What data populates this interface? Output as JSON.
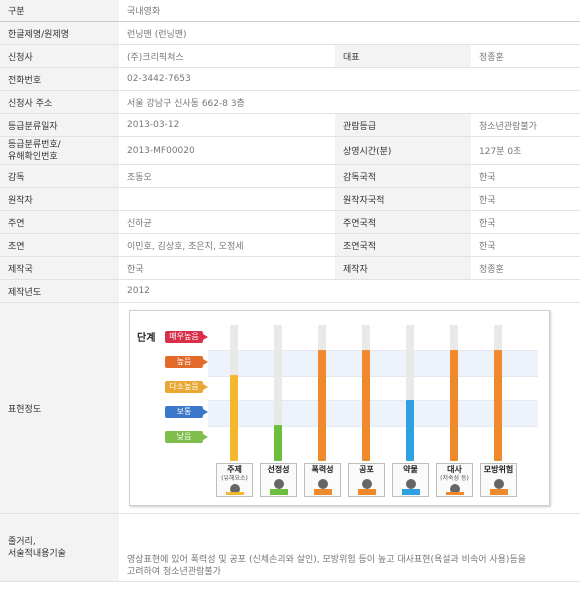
{
  "rows": {
    "category": {
      "label": "구분",
      "value": "국내영화"
    },
    "title": {
      "label": "한글제명/원제명",
      "value": "런닝맨 (런닝맨)"
    },
    "applicant": {
      "label": "신청사",
      "value": "(주)크리픽쳐스",
      "label2": "대표",
      "value2": "정종훈"
    },
    "phone": {
      "label": "전화번호",
      "value": "02-3442-7653"
    },
    "address": {
      "label": "신청사 주소",
      "value": "서울 강남구 신사동 662-8 3층"
    },
    "rating_date": {
      "label": "등급분류일자",
      "value": "2013-03-12",
      "label2": "관람등급",
      "value2": "청소년관람불가"
    },
    "rating_no": {
      "label_line1": "등급분류번호/",
      "label_line2": "유해확인번호",
      "value": "2013-MF00020",
      "label2": "상영시간(분)",
      "value2": "127분 0초"
    },
    "director": {
      "label": "감독",
      "value": "조동오",
      "label2": "감독국적",
      "value2": "한국"
    },
    "author": {
      "label": "원작자",
      "value": "",
      "label2": "원작자국적",
      "value2": "한국"
    },
    "lead": {
      "label": "주연",
      "value": "신하균",
      "label2": "주연국적",
      "value2": "한국"
    },
    "supporting": {
      "label": "조연",
      "value": "이민호, 김상호, 조은지, 오정세",
      "label2": "조연국적",
      "value2": "한국"
    },
    "country": {
      "label": "제작국",
      "value": "한국",
      "label2": "제작자",
      "value2": "정종훈"
    },
    "year": {
      "label": "제작년도",
      "value": "2012"
    },
    "expression": {
      "label": "표현정도"
    },
    "story": {
      "label_line1": "줄거리,",
      "label_line2": "서술적내용기술",
      "value": "영상표현에 있어 폭력성 및 공포 (신체손괴와 살인), 모방위험 등이 높고 대사표현(욕설과 비속어 사용)등을 고려하여 청소년관람불가"
    }
  },
  "chart_data": {
    "type": "bar",
    "title": "단계",
    "levels": [
      {
        "name": "매우높음",
        "color": "#d9304a"
      },
      {
        "name": "높음",
        "color": "#e36b2a"
      },
      {
        "name": "다소높음",
        "color": "#e8a832"
      },
      {
        "name": "보통",
        "color": "#3a77c8"
      },
      {
        "name": "낮음",
        "color": "#7fbe4a"
      }
    ],
    "categories": [
      {
        "name": "주제",
        "sub": "(유해요소)",
        "level": 3,
        "color": "#f5b72b"
      },
      {
        "name": "선정성",
        "sub": "",
        "level": 1,
        "color": "#6cbf3c"
      },
      {
        "name": "폭력성",
        "sub": "",
        "level": 4,
        "color": "#ee8a2c"
      },
      {
        "name": "공포",
        "sub": "",
        "level": 4,
        "color": "#ee8a2c"
      },
      {
        "name": "약물",
        "sub": "",
        "level": 2,
        "color": "#2fa0e0"
      },
      {
        "name": "대사",
        "sub": "(저속성 등)",
        "level": 4,
        "color": "#ee8a2c"
      },
      {
        "name": "모방위험",
        "sub": "",
        "level": 4,
        "color": "#ee8a2c"
      }
    ],
    "scale_max": 5
  }
}
